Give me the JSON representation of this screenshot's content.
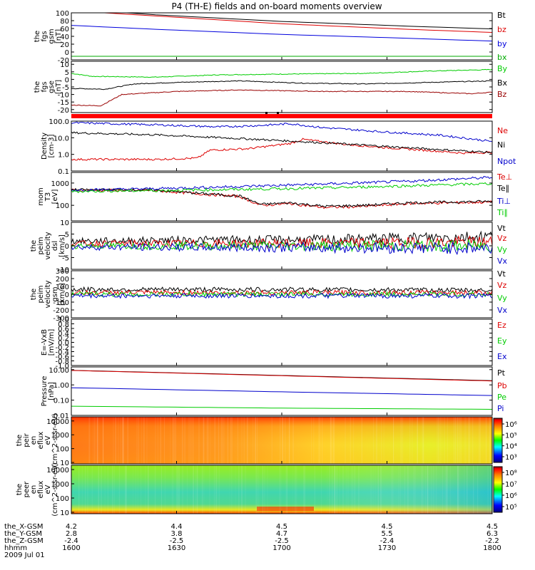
{
  "title": "P4 (TH-E) fields and on-board moments overview",
  "chart_data": [
    {
      "type": "line",
      "id": "fgs_gsm",
      "ylabel": "the fgs gsm [nT]",
      "ylim": [
        -20,
        100
      ],
      "yticks": [
        "100",
        "80",
        "60",
        "40",
        "20",
        "0",
        "-20"
      ],
      "series": [
        {
          "name": "Bt",
          "color": "#000000",
          "values": [
            [
              0,
              110
            ],
            [
              0.2,
              95
            ],
            [
              0.5,
              78
            ],
            [
              0.8,
              66
            ],
            [
              1,
              59
            ]
          ]
        },
        {
          "name": "bz",
          "color": "#dd0000",
          "values": [
            [
              0,
              105
            ],
            [
              0.2,
              92
            ],
            [
              0.5,
              72
            ],
            [
              0.8,
              58
            ],
            [
              1,
              50
            ]
          ]
        },
        {
          "name": "by",
          "color": "#0000dd",
          "values": [
            [
              0,
              68
            ],
            [
              0.2,
              58
            ],
            [
              0.5,
              45
            ],
            [
              0.8,
              35
            ],
            [
              1,
              28
            ]
          ]
        },
        {
          "name": "bx",
          "color": "#00aa00",
          "values": [
            [
              0,
              -11
            ],
            [
              1,
              -11
            ]
          ]
        }
      ]
    },
    {
      "type": "line",
      "id": "fgs_gse",
      "ylabel": "the fgs gse [nT]",
      "ylim": [
        -22,
        12
      ],
      "yticks": [
        "10",
        "5",
        "0",
        "-5",
        "-10",
        "-15",
        "-20"
      ],
      "series": [
        {
          "name": "By",
          "color": "#00cc00",
          "values": [
            [
              0,
              4
            ],
            [
              0.05,
              2
            ],
            [
              0.2,
              1.5
            ],
            [
              0.35,
              3
            ],
            [
              0.5,
              3.5
            ],
            [
              0.7,
              4
            ],
            [
              0.85,
              5.5
            ],
            [
              1,
              6.5
            ]
          ]
        },
        {
          "name": "Bx",
          "color": "#000000",
          "values": [
            [
              0,
              -6
            ],
            [
              0.08,
              -6.5
            ],
            [
              0.15,
              -3
            ],
            [
              0.25,
              -2
            ],
            [
              0.4,
              -1
            ],
            [
              0.55,
              -2.5
            ],
            [
              0.7,
              -3
            ],
            [
              0.85,
              -2
            ],
            [
              1,
              -1
            ]
          ]
        },
        {
          "name": "Bz",
          "color": "#990000",
          "values": [
            [
              0,
              -17
            ],
            [
              0.07,
              -17.5
            ],
            [
              0.12,
              -10
            ],
            [
              0.25,
              -8
            ],
            [
              0.4,
              -7
            ],
            [
              0.6,
              -8
            ],
            [
              0.8,
              -8
            ],
            [
              0.95,
              -9.5
            ],
            [
              1,
              -8.5
            ]
          ]
        }
      ]
    },
    {
      "type": "line",
      "id": "density",
      "ylabel": "Density [cm-3]",
      "scale": "log",
      "ylim": [
        0.1,
        100
      ],
      "yticks": [
        "100.0",
        "10.0",
        "1.0",
        "0.1"
      ],
      "series": [
        {
          "name": "Ne",
          "color": "#dd0000",
          "values": [
            [
              0,
              0.5
            ],
            [
              0.2,
              0.5
            ],
            [
              0.3,
              0.6
            ],
            [
              0.33,
              1.8
            ],
            [
              0.42,
              2.2
            ],
            [
              0.52,
              4.5
            ],
            [
              0.55,
              8
            ],
            [
              0.65,
              4
            ],
            [
              0.75,
              2.5
            ],
            [
              0.85,
              1.7
            ],
            [
              0.93,
              1.2
            ],
            [
              1,
              1.3
            ]
          ]
        },
        {
          "name": "Ni",
          "color": "#000000",
          "values": [
            [
              0,
              20
            ],
            [
              0.2,
              15
            ],
            [
              0.4,
              9
            ],
            [
              0.6,
              5
            ],
            [
              0.8,
              2.5
            ],
            [
              1,
              1.3
            ]
          ]
        },
        {
          "name": "Npot",
          "color": "#0000cc",
          "values": [
            [
              0,
              80
            ],
            [
              0.2,
              60
            ],
            [
              0.35,
              45
            ],
            [
              0.45,
              55
            ],
            [
              0.52,
              70
            ],
            [
              0.6,
              40
            ],
            [
              0.75,
              22
            ],
            [
              0.88,
              14
            ],
            [
              1,
              6
            ]
          ]
        }
      ]
    },
    {
      "type": "line",
      "id": "temperature",
      "ylabel": "mom T3 [eV]",
      "scale": "log",
      "ylim": [
        20,
        3000
      ],
      "yticks": [
        "1000",
        "100"
      ],
      "series": [
        {
          "name": "Te⊥",
          "color": "#dd0000",
          "values": [
            [
              0,
              480
            ],
            [
              0.2,
              460
            ],
            [
              0.3,
              330
            ],
            [
              0.4,
              250
            ],
            [
              0.45,
              100
            ],
            [
              0.52,
              120
            ],
            [
              0.6,
              80
            ],
            [
              0.7,
              90
            ],
            [
              0.8,
              120
            ],
            [
              0.9,
              130
            ],
            [
              1,
              140
            ]
          ]
        },
        {
          "name": "Te∥",
          "color": "#000000",
          "values": [
            [
              0,
              500
            ],
            [
              0.2,
              480
            ],
            [
              0.3,
              350
            ],
            [
              0.4,
              260
            ],
            [
              0.45,
              110
            ],
            [
              0.52,
              130
            ],
            [
              0.6,
              90
            ],
            [
              0.7,
              100
            ],
            [
              0.8,
              130
            ],
            [
              0.9,
              140
            ],
            [
              1,
              150
            ]
          ]
        },
        {
          "name": "Ti⊥",
          "color": "#0000cc",
          "values": [
            [
              0,
              480
            ],
            [
              0.2,
              560
            ],
            [
              0.4,
              700
            ],
            [
              0.6,
              900
            ],
            [
              0.8,
              1200
            ],
            [
              1,
              1800
            ]
          ]
        },
        {
          "name": "Ti∥",
          "color": "#00cc00",
          "values": [
            [
              0,
              420
            ],
            [
              0.2,
              460
            ],
            [
              0.4,
              520
            ],
            [
              0.6,
              600
            ],
            [
              0.8,
              750
            ],
            [
              1,
              950
            ]
          ]
        }
      ]
    },
    {
      "type": "line",
      "id": "velocity_dsl",
      "ylabel": "the peim velocity dsl [km/s]",
      "ylim": [
        -10,
        10
      ],
      "yticks": [
        "10",
        "5",
        "0",
        "-5",
        "-10"
      ],
      "series": [
        {
          "name": "Vt",
          "color": "#000000",
          "values": [
            [
              0,
              2
            ],
            [
              0.3,
              2.5
            ],
            [
              0.6,
              2.5
            ],
            [
              0.85,
              3.5
            ],
            [
              1,
              4
            ]
          ]
        },
        {
          "name": "Vz",
          "color": "#dd0000",
          "values": [
            [
              0,
              1
            ],
            [
              0.5,
              1
            ],
            [
              1,
              1.5
            ]
          ]
        },
        {
          "name": "Vy",
          "color": "#00cc00",
          "values": [
            [
              0,
              0
            ],
            [
              1,
              0
            ]
          ]
        },
        {
          "name": "Vx",
          "color": "#0000cc",
          "values": [
            [
              0,
              -0.5
            ],
            [
              1,
              -1
            ]
          ]
        }
      ]
    },
    {
      "type": "line",
      "id": "velocity_gsm",
      "ylabel": "the peim velocity gsm [km/s]",
      "ylim": [
        -300,
        300
      ],
      "yticks": [
        "300",
        "200",
        "100",
        "0",
        "-100",
        "-200",
        "-300"
      ],
      "series": [
        {
          "name": "Vt",
          "color": "#000000",
          "values": [
            [
              0,
              60
            ],
            [
              0.5,
              60
            ],
            [
              1,
              50
            ]
          ]
        },
        {
          "name": "Vz",
          "color": "#dd0000",
          "values": [
            [
              0,
              20
            ],
            [
              1,
              20
            ]
          ]
        },
        {
          "name": "Vy",
          "color": "#00cc00",
          "values": [
            [
              0,
              0
            ],
            [
              1,
              0
            ]
          ]
        },
        {
          "name": "Vx",
          "color": "#0000cc",
          "values": [
            [
              0,
              -20
            ],
            [
              1,
              -20
            ]
          ]
        }
      ]
    },
    {
      "type": "line",
      "id": "efield",
      "ylabel": "E=-VxB [mV/m]",
      "ylim": [
        -1,
        1
      ],
      "yticks": [
        "1.0",
        "0.8",
        "0.6",
        "0.4",
        "0.2",
        "0.0",
        "-0.2",
        "-0.4",
        "-0.6",
        "-0.8",
        "-1.0"
      ],
      "series": [
        {
          "name": "Ez",
          "color": "#dd0000",
          "values": []
        },
        {
          "name": "Ey",
          "color": "#00cc00",
          "values": []
        },
        {
          "name": "Ex",
          "color": "#0000cc",
          "values": []
        }
      ]
    },
    {
      "type": "line",
      "id": "pressure",
      "ylabel": "Pressure [nPa]",
      "scale": "log",
      "ylim": [
        0.01,
        15
      ],
      "yticks": [
        "10.00",
        "1.00",
        "0.10",
        "0.01"
      ],
      "series": [
        {
          "name": "Pt",
          "color": "#000000",
          "values": [
            [
              0,
              9
            ],
            [
              1,
              1.9
            ]
          ]
        },
        {
          "name": "Pb",
          "color": "#dd0000",
          "values": [
            [
              0,
              8.8
            ],
            [
              1,
              1.8
            ]
          ]
        },
        {
          "name": "Pe",
          "color": "#00cc00",
          "values": [
            [
              0,
              0.04
            ],
            [
              0.5,
              0.03
            ],
            [
              1,
              0.025
            ]
          ]
        },
        {
          "name": "Pi",
          "color": "#0000cc",
          "values": [
            [
              0,
              0.65
            ],
            [
              0.5,
              0.35
            ],
            [
              1,
              0.2
            ]
          ]
        }
      ]
    },
    {
      "type": "heatmap",
      "id": "peir_eflux",
      "ylabel": "the peir en eflux eV (cm^2-s-sr-eV)",
      "yticks": [
        "10000",
        "1000",
        "100",
        "10"
      ],
      "colorbar": {
        "ticks": [
          "10⁶",
          "10⁵",
          "10⁴",
          "10³"
        ]
      }
    },
    {
      "type": "heatmap",
      "id": "peer_eflux",
      "ylabel": "the peer en eflux eV (cm^2-s-sr-eV)",
      "yticks": [
        "10000",
        "1000",
        "100",
        "10"
      ],
      "colorbar": {
        "ticks": [
          "10⁸",
          "10⁷",
          "10⁶",
          "10⁵"
        ]
      }
    }
  ],
  "xaxis": {
    "rows": [
      {
        "label": "the_X-GSM",
        "values": [
          "4.2",
          "4.4",
          "4.5",
          "4.5",
          "4.5"
        ]
      },
      {
        "label": "the_Y-GSM",
        "values": [
          "2.8",
          "3.8",
          "4.7",
          "5.5",
          "6.3"
        ]
      },
      {
        "label": "the_Z-GSM",
        "values": [
          "-2.4",
          "-2.5",
          "-2.5",
          "-2.4",
          "-2.2"
        ]
      },
      {
        "label": "hhmm",
        "values": [
          "1600",
          "1630",
          "1700",
          "1730",
          "1800"
        ]
      }
    ],
    "date": "2009 Jul 01"
  }
}
